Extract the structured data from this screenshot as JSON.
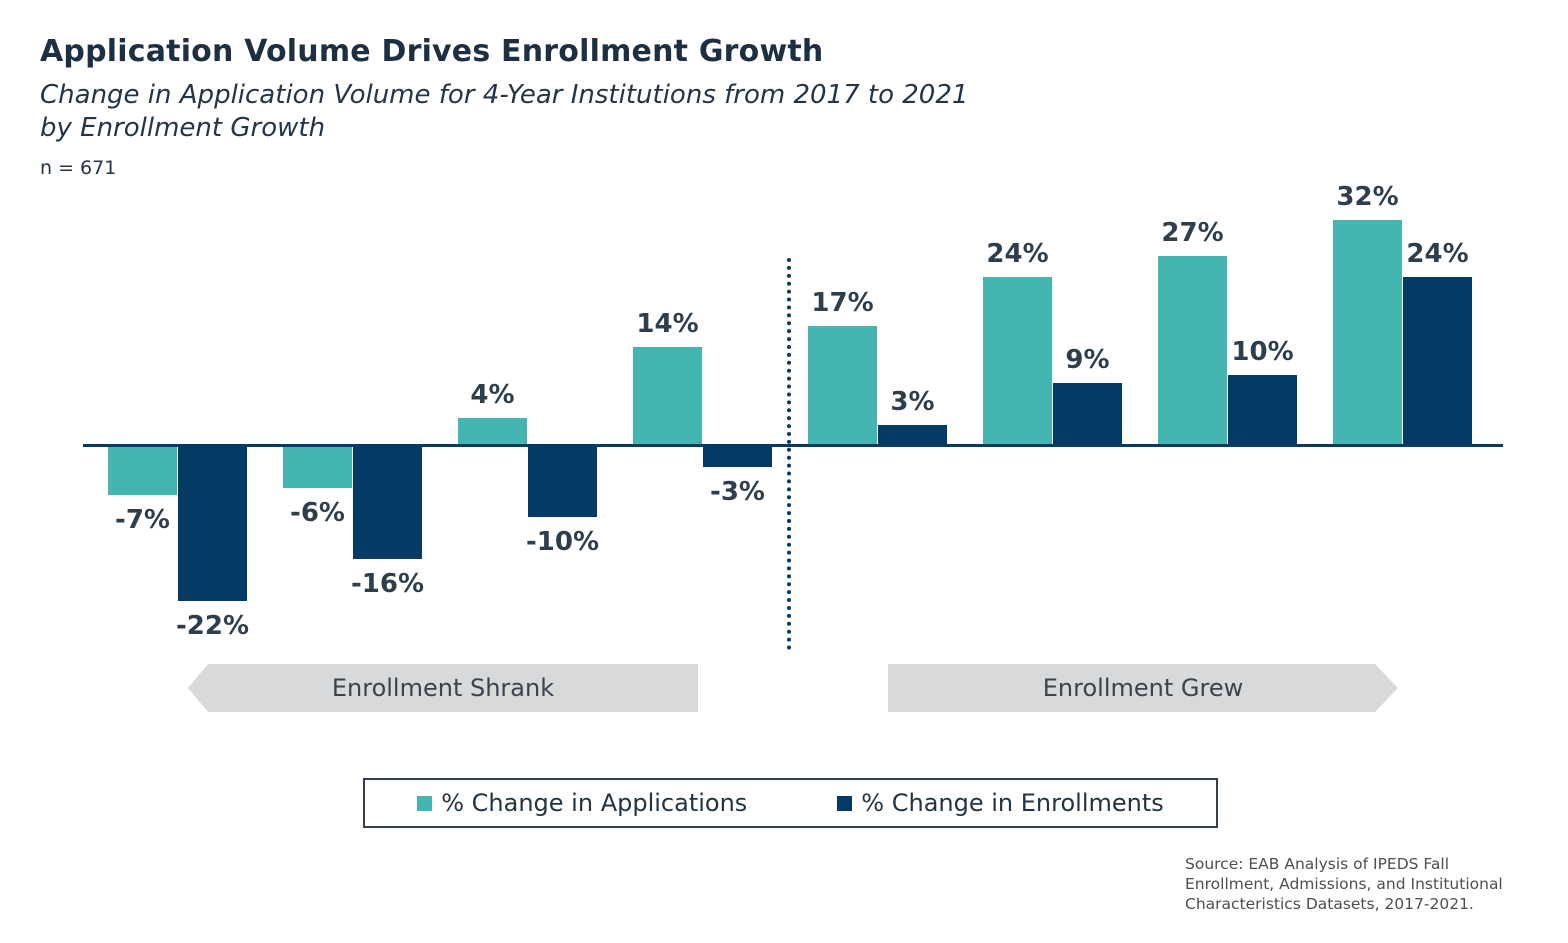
{
  "header": {
    "title": "Application Volume Drives Enrollment Growth",
    "subtitle_lines": [
      "Change in Application Volume for 4-Year Institutions from 2017 to 2021",
      "by Enrollment Growth"
    ],
    "sample_size": "n = 671"
  },
  "chart_data": {
    "type": "bar",
    "categories": [
      "group 1",
      "group 2",
      "group 3",
      "group 4",
      "group 5",
      "group 6",
      "group 7",
      "group 8"
    ],
    "series": [
      {
        "name": "% Change in Applications",
        "color": "#44b5b1",
        "values": [
          -7,
          -6,
          4,
          14,
          17,
          24,
          27,
          32
        ]
      },
      {
        "name": "% Change in Enrollments",
        "color": "#043a64",
        "values": [
          -22,
          -16,
          -10,
          -3,
          3,
          9,
          10,
          24
        ]
      }
    ],
    "value_label_format": "{value}%",
    "sections": [
      {
        "label": "Enrollment Shrank",
        "group_indices": [
          0,
          1,
          2,
          3
        ],
        "arrow_direction": "left"
      },
      {
        "label": "Enrollment Grew",
        "group_indices": [
          4,
          5,
          6,
          7
        ],
        "arrow_direction": "right"
      }
    ],
    "title": "Application Volume Drives Enrollment Growth",
    "subtitle": "Change in Application Volume for 4-Year Institutions from 2017 to 2021 by Enrollment Growth",
    "xlabel": "",
    "ylabel": "",
    "ylim": [
      -26,
      36
    ],
    "grid": false,
    "axis_color": "#043a64",
    "label_color": "#2f3e4d",
    "legend_position": "bottom"
  },
  "legend": {
    "items": [
      {
        "label": "% Change in Applications",
        "color": "#44b5b1"
      },
      {
        "label": "% Change in Enrollments",
        "color": "#043a64"
      }
    ]
  },
  "source": {
    "lines": [
      "Source: EAB Analysis of IPEDS Fall",
      "Enrollment, Admissions, and Institutional",
      "Characteristics Datasets, 2017-2021."
    ]
  }
}
